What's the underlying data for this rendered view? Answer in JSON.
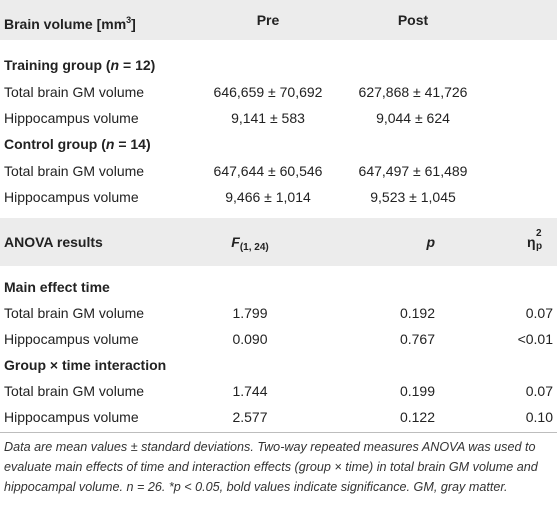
{
  "header": {
    "col1": "Brain volume [mm",
    "col1_sup": "3",
    "col1_close": "]",
    "col2": "Pre",
    "col3": "Post"
  },
  "groups": [
    {
      "title_prefix": "Training group (",
      "title_n": "n",
      "title_suffix": " = 12)",
      "rows": [
        {
          "label": "Total brain GM volume",
          "pre": "646,659 ± 70,692",
          "post": "627,868 ± 41,726"
        },
        {
          "label": "Hippocampus volume",
          "pre": "9,141 ± 583",
          "post": "9,044 ± 624"
        }
      ]
    },
    {
      "title_prefix": "Control group (",
      "title_n": "n",
      "title_suffix": " = 14)",
      "rows": [
        {
          "label": "Total brain GM volume",
          "pre": "647,644 ± 60,546",
          "post": "647,497 ± 61,489"
        },
        {
          "label": "Hippocampus volume",
          "pre": "9,466 ± 1,014",
          "post": "9,523 ± 1,045"
        }
      ]
    }
  ],
  "anova_header": {
    "col1": "ANOVA results",
    "f_letter": "F",
    "f_sub": "(1, 24)",
    "p": "p",
    "eta": "η",
    "eta_sup": "2",
    "eta_sub": "p"
  },
  "anova_sections": [
    {
      "title": "Main effect time",
      "rows": [
        {
          "label": "Total brain GM volume",
          "f": "1.799",
          "p": "0.192",
          "eta": "0.07"
        },
        {
          "label": "Hippocampus volume",
          "f": "0.090",
          "p": "0.767",
          "eta": "<0.01"
        }
      ]
    },
    {
      "title": "Group × time interaction",
      "rows": [
        {
          "label": "Total brain GM volume",
          "f": "1.744",
          "p": "0.199",
          "eta": "0.07"
        },
        {
          "label": "Hippocampus volume",
          "f": "2.577",
          "p": "0.122",
          "eta": "0.10"
        }
      ]
    }
  ],
  "footnote": "Data are mean values ± standard deviations. Two-way repeated measures ANOVA was used to evaluate main effects of time and interaction effects (group × time) in total brain GM volume and hippocampal volume. n = 26. *p < 0.05, bold values indicate significance. GM, gray matter.",
  "colors": {
    "band": "#ececec",
    "rule": "#bdbdbd",
    "text": "#222222"
  }
}
